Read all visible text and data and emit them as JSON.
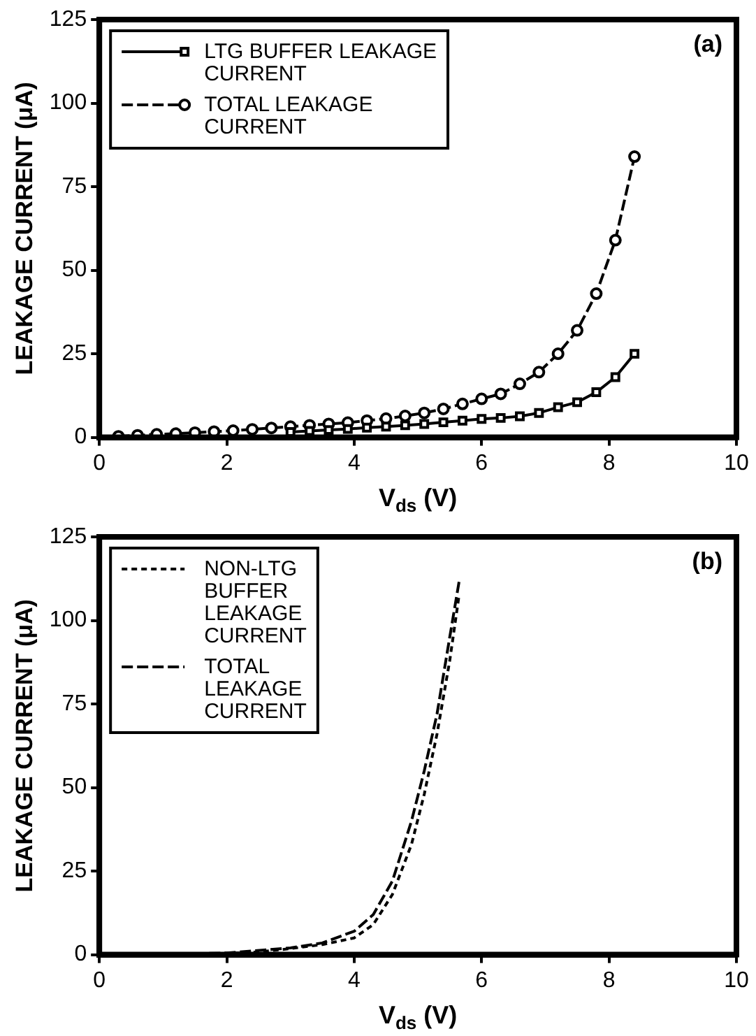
{
  "chart_data": [
    {
      "type": "line",
      "ylabel": "LEAKAGE CURRENT (μA)",
      "xlabel": "V$_{ds}$ (V)",
      "annotations": [
        "(a)"
      ],
      "xlim": [
        0,
        10
      ],
      "xticks": [
        0,
        2,
        4,
        6,
        8,
        10
      ],
      "ylim": [
        0,
        125
      ],
      "yticks": [
        0,
        25,
        50,
        75,
        100,
        125
      ],
      "grid": false,
      "legend": "top left",
      "series": [
        {
          "name": "LTG BUFFER LEAKAGE CURRENT",
          "color": "#000000",
          "marker": "square",
          "line_style": "solid",
          "x": [
            3.0,
            3.3,
            3.6,
            3.9,
            4.2,
            4.5,
            4.8,
            5.1,
            5.4,
            5.7,
            6.0,
            6.3,
            6.6,
            6.9,
            7.2,
            7.5,
            7.8,
            8.1,
            8.4
          ],
          "values": [
            1.6,
            1.9,
            2.2,
            2.5,
            2.9,
            3.2,
            3.6,
            4.0,
            4.5,
            5.0,
            5.5,
            5.8,
            6.3,
            7.3,
            9,
            10.5,
            13.5,
            18,
            25
          ]
        },
        {
          "name": "TOTAL LEAKAGE CURRENT",
          "color": "#000000",
          "marker": "circle",
          "line_style": "dashed",
          "x": [
            0.3,
            0.6,
            0.9,
            1.2,
            1.5,
            1.8,
            2.1,
            2.4,
            2.7,
            3.0,
            3.3,
            3.6,
            3.9,
            4.2,
            4.5,
            4.8,
            5.1,
            5.4,
            5.7,
            6.0,
            6.3,
            6.6,
            6.9,
            7.2,
            7.5,
            7.8,
            8.1,
            8.4
          ],
          "values": [
            0.3,
            0.6,
            0.9,
            1.1,
            1.4,
            1.7,
            2.0,
            2.4,
            2.8,
            3.2,
            3.6,
            4.0,
            4.4,
            5.0,
            5.6,
            6.4,
            7.3,
            8.5,
            10,
            11.5,
            13,
            16,
            19.5,
            25,
            32,
            43,
            59,
            84
          ]
        }
      ]
    },
    {
      "type": "line",
      "ylabel": "LEAKAGE CURRENT (μA)",
      "xlabel": "V$_{ds}$ (V)",
      "annotations": [
        "(b)"
      ],
      "xlim": [
        0,
        10
      ],
      "xticks": [
        0,
        2,
        4,
        6,
        8,
        10
      ],
      "ylim": [
        0,
        125
      ],
      "yticks": [
        0,
        25,
        50,
        75,
        100,
        125
      ],
      "grid": false,
      "legend": "top left",
      "series": [
        {
          "name": "NON-LTG BUFFER LEAKAGE CURRENT",
          "color": "#000000",
          "marker": "none",
          "line_style": "dotted",
          "x": [
            1.5,
            2.5,
            3.0,
            3.5,
            4.0,
            4.3,
            4.6,
            4.9,
            5.1,
            5.3,
            5.5,
            5.65
          ],
          "values": [
            0,
            0.8,
            1.8,
            3,
            5,
            9,
            18,
            33,
            48,
            66,
            88,
            108
          ]
        },
        {
          "name": "TOTAL LEAKAGE CURRENT",
          "color": "#000000",
          "marker": "none",
          "line_style": "dashed",
          "x": [
            1.0,
            2.0,
            3.0,
            3.5,
            4.0,
            4.3,
            4.6,
            4.9,
            5.1,
            5.3,
            5.5,
            5.65
          ],
          "values": [
            0,
            0.5,
            2,
            3.5,
            7,
            12,
            22,
            40,
            55,
            72,
            95,
            112
          ]
        }
      ]
    }
  ]
}
